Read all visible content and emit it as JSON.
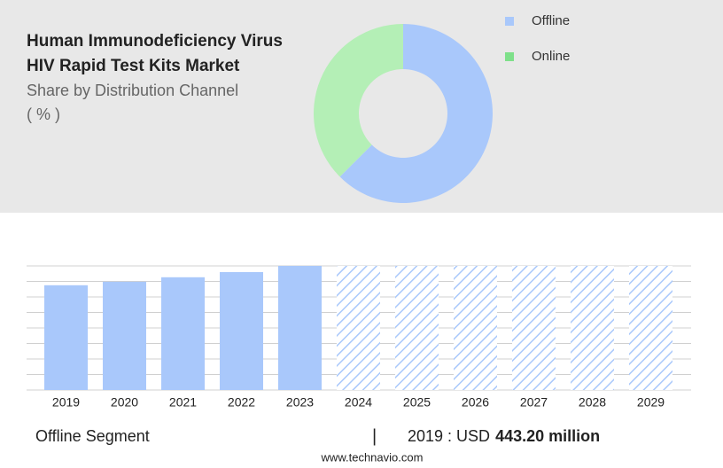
{
  "header": {
    "title_line1": "Human Immunodeficiency Virus",
    "title_line2": "HIV Rapid Test Kits Market",
    "subtitle": "Share by Distribution Channel",
    "unit": "( % )"
  },
  "chart_data": [
    {
      "type": "pie",
      "categories": [
        "Offline",
        "Online"
      ],
      "values": [
        62.5,
        37.5
      ],
      "colors": [
        "#a9c8fb",
        "#b4efb6"
      ],
      "legend_colors": [
        "#a9c8fb",
        "#7ee08a"
      ],
      "donut": true
    },
    {
      "type": "bar",
      "categories": [
        "2019",
        "2020",
        "2021",
        "2022",
        "2023",
        "2024",
        "2025",
        "2026",
        "2027",
        "2028",
        "2029"
      ],
      "values": [
        443.2,
        458,
        477,
        499,
        525,
        null,
        null,
        null,
        null,
        null,
        null
      ],
      "color": "#a9c8fb",
      "ylim": [
        0,
        525
      ],
      "grid": true
    }
  ],
  "footer": {
    "segment": "Offline Segment",
    "separator": "|",
    "year_prefix": "2019 : USD",
    "value": "443.20 million",
    "website": "www.technavio.com"
  }
}
